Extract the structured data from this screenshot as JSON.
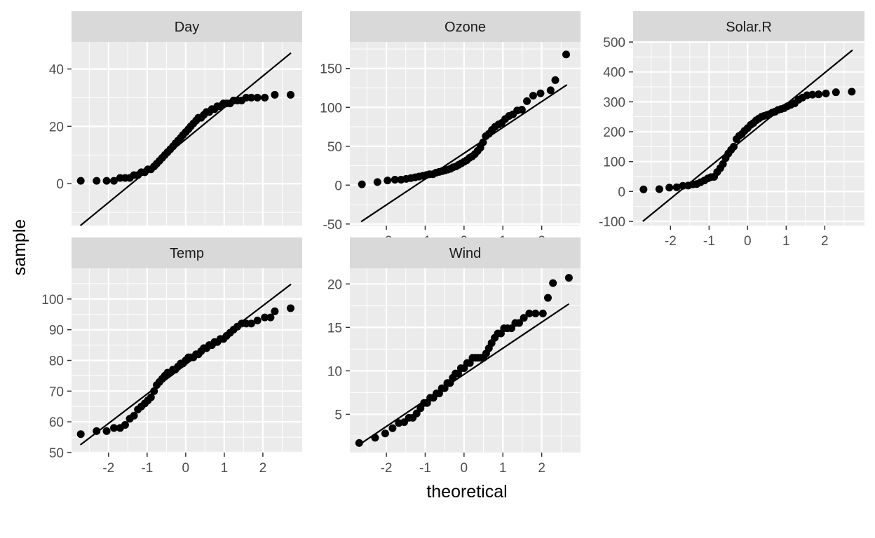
{
  "chart_data": {
    "type": "scatter",
    "subtype": "qq-plot facets",
    "xlabel": "theoretical",
    "ylabel": "sample",
    "x_ticks": [
      "-2",
      "-1",
      "0",
      "1",
      "2"
    ],
    "colors": {
      "panel_bg": "#ebebeb",
      "strip_bg": "#d9d9d9",
      "grid": "#ffffff",
      "points": "#000000",
      "line": "#000000",
      "axis_text": "#4d4d4d",
      "title_text": "#000000"
    },
    "panels": [
      {
        "title": "Day",
        "y_ticks": [
          "0",
          "20",
          "40"
        ],
        "ylim": [
          -14.6,
          49.4
        ],
        "xlim": [
          -2.96,
          3.02
        ],
        "line": {
          "x1": -2.73,
          "y1": -14.6,
          "x2": 2.73,
          "y2": 45.6
        },
        "points": [
          [
            -2.72,
            1
          ],
          [
            -2.31,
            1
          ],
          [
            -2.05,
            1
          ],
          [
            -1.86,
            1
          ],
          [
            -1.7,
            2
          ],
          [
            -1.57,
            2
          ],
          [
            -1.45,
            2
          ],
          [
            -1.34,
            3
          ],
          [
            -1.24,
            3
          ],
          [
            -1.15,
            4
          ],
          [
            -1.06,
            4
          ],
          [
            -0.98,
            5
          ],
          [
            -0.9,
            5
          ],
          [
            -0.82,
            6
          ],
          [
            -0.75,
            7
          ],
          [
            -0.68,
            8
          ],
          [
            -0.61,
            9
          ],
          [
            -0.54,
            10
          ],
          [
            -0.47,
            11
          ],
          [
            -0.4,
            12
          ],
          [
            -0.33,
            13
          ],
          [
            -0.27,
            14
          ],
          [
            -0.2,
            15
          ],
          [
            -0.13,
            16
          ],
          [
            -0.07,
            17
          ],
          [
            0.0,
            18
          ],
          [
            0.07,
            19
          ],
          [
            0.13,
            20
          ],
          [
            0.2,
            21
          ],
          [
            0.27,
            22
          ],
          [
            0.33,
            23
          ],
          [
            0.4,
            23
          ],
          [
            0.47,
            24
          ],
          [
            0.54,
            25
          ],
          [
            0.61,
            25
          ],
          [
            0.68,
            26
          ],
          [
            0.75,
            26
          ],
          [
            0.82,
            27
          ],
          [
            0.9,
            27
          ],
          [
            0.98,
            28
          ],
          [
            1.06,
            28
          ],
          [
            1.15,
            28
          ],
          [
            1.24,
            29
          ],
          [
            1.34,
            29
          ],
          [
            1.45,
            29
          ],
          [
            1.57,
            30
          ],
          [
            1.7,
            30
          ],
          [
            1.86,
            30
          ],
          [
            2.05,
            30
          ],
          [
            2.31,
            31
          ],
          [
            2.72,
            31
          ]
        ]
      },
      {
        "title": "Ozone",
        "y_ticks": [
          "-50",
          "0",
          "50",
          "100",
          "150"
        ],
        "ylim": [
          -52,
          184
        ],
        "xlim": [
          -2.94,
          3.0
        ],
        "line": {
          "x1": -2.65,
          "y1": -47,
          "x2": 2.65,
          "y2": 129
        },
        "points": [
          [
            -2.63,
            1
          ],
          [
            -2.23,
            4
          ],
          [
            -1.97,
            6
          ],
          [
            -1.78,
            7
          ],
          [
            -1.62,
            7
          ],
          [
            -1.49,
            8
          ],
          [
            -1.37,
            9
          ],
          [
            -1.26,
            10
          ],
          [
            -1.16,
            11
          ],
          [
            -1.06,
            12
          ],
          [
            -0.97,
            13
          ],
          [
            -0.89,
            14
          ],
          [
            -0.8,
            14
          ],
          [
            -0.72,
            16
          ],
          [
            -0.64,
            17
          ],
          [
            -0.56,
            18
          ],
          [
            -0.49,
            19
          ],
          [
            -0.42,
            20
          ],
          [
            -0.35,
            21
          ],
          [
            -0.28,
            23
          ],
          [
            -0.21,
            24
          ],
          [
            -0.14,
            26
          ],
          [
            -0.07,
            28
          ],
          [
            0.0,
            30
          ],
          [
            0.07,
            32
          ],
          [
            0.14,
            35
          ],
          [
            0.21,
            37
          ],
          [
            0.28,
            40
          ],
          [
            0.35,
            44
          ],
          [
            0.42,
            48
          ],
          [
            0.49,
            55
          ],
          [
            0.56,
            63
          ],
          [
            0.64,
            66
          ],
          [
            0.72,
            71
          ],
          [
            0.8,
            75
          ],
          [
            0.89,
            78
          ],
          [
            0.97,
            80
          ],
          [
            1.06,
            85
          ],
          [
            1.16,
            89
          ],
          [
            1.26,
            91
          ],
          [
            1.37,
            96
          ],
          [
            1.49,
            97
          ],
          [
            1.62,
            108
          ],
          [
            1.78,
            115
          ],
          [
            1.97,
            118
          ],
          [
            2.23,
            122
          ],
          [
            2.35,
            135
          ],
          [
            2.63,
            168
          ]
        ]
      },
      {
        "title": "Solar.R",
        "y_ticks": [
          "-100",
          "0",
          "100",
          "200",
          "300",
          "400",
          "500"
        ],
        "ylim": [
          -114,
          500
        ],
        "xlim": [
          -2.97,
          3.03
        ],
        "line": {
          "x1": -2.72,
          "y1": -100,
          "x2": 2.72,
          "y2": 473
        },
        "points": [
          [
            -2.7,
            7
          ],
          [
            -2.29,
            8
          ],
          [
            -2.03,
            13
          ],
          [
            -1.84,
            14
          ],
          [
            -1.68,
            19
          ],
          [
            -1.54,
            20
          ],
          [
            -1.42,
            24
          ],
          [
            -1.32,
            25
          ],
          [
            -1.22,
            31
          ],
          [
            -1.12,
            37
          ],
          [
            -1.03,
            44
          ],
          [
            -0.95,
            48
          ],
          [
            -0.87,
            49
          ],
          [
            -0.79,
            65
          ],
          [
            -0.71,
            78
          ],
          [
            -0.64,
            92
          ],
          [
            -0.57,
            112
          ],
          [
            -0.5,
            127
          ],
          [
            -0.43,
            139
          ],
          [
            -0.36,
            150
          ],
          [
            -0.29,
            175
          ],
          [
            -0.22,
            186
          ],
          [
            -0.15,
            192
          ],
          [
            -0.08,
            203
          ],
          [
            0.0,
            212
          ],
          [
            0.08,
            223
          ],
          [
            0.15,
            229
          ],
          [
            0.22,
            238
          ],
          [
            0.29,
            244
          ],
          [
            0.36,
            250
          ],
          [
            0.43,
            253
          ],
          [
            0.5,
            256
          ],
          [
            0.57,
            259
          ],
          [
            0.64,
            264
          ],
          [
            0.71,
            267
          ],
          [
            0.79,
            273
          ],
          [
            0.87,
            276
          ],
          [
            0.95,
            279
          ],
          [
            1.03,
            285
          ],
          [
            1.12,
            290
          ],
          [
            1.22,
            295
          ],
          [
            1.32,
            307
          ],
          [
            1.42,
            314
          ],
          [
            1.54,
            322
          ],
          [
            1.68,
            324
          ],
          [
            1.84,
            325
          ],
          [
            2.03,
            328
          ],
          [
            2.29,
            332
          ],
          [
            2.7,
            334
          ]
        ]
      },
      {
        "title": "Temp",
        "y_ticks": [
          "50",
          "60",
          "70",
          "80",
          "90",
          "100"
        ],
        "ylim": [
          50,
          110
        ],
        "xlim": [
          -2.96,
          3.02
        ],
        "line": {
          "x1": -2.73,
          "y1": 52.5,
          "x2": 2.73,
          "y2": 104.8
        },
        "points": [
          [
            -2.72,
            56
          ],
          [
            -2.31,
            57
          ],
          [
            -2.05,
            57
          ],
          [
            -1.86,
            58
          ],
          [
            -1.7,
            58
          ],
          [
            -1.57,
            59
          ],
          [
            -1.45,
            61
          ],
          [
            -1.34,
            62
          ],
          [
            -1.24,
            64
          ],
          [
            -1.15,
            65
          ],
          [
            -1.06,
            66
          ],
          [
            -0.98,
            67
          ],
          [
            -0.9,
            68
          ],
          [
            -0.82,
            70
          ],
          [
            -0.75,
            72
          ],
          [
            -0.68,
            73
          ],
          [
            -0.61,
            74
          ],
          [
            -0.54,
            75
          ],
          [
            -0.47,
            76
          ],
          [
            -0.4,
            76
          ],
          [
            -0.33,
            77
          ],
          [
            -0.27,
            77
          ],
          [
            -0.2,
            78
          ],
          [
            -0.13,
            79
          ],
          [
            -0.07,
            79
          ],
          [
            0.0,
            80
          ],
          [
            0.07,
            81
          ],
          [
            0.13,
            81
          ],
          [
            0.2,
            81
          ],
          [
            0.27,
            82
          ],
          [
            0.33,
            82
          ],
          [
            0.4,
            83
          ],
          [
            0.47,
            84
          ],
          [
            0.54,
            84
          ],
          [
            0.61,
            85
          ],
          [
            0.68,
            85
          ],
          [
            0.75,
            86
          ],
          [
            0.82,
            86
          ],
          [
            0.9,
            87
          ],
          [
            0.98,
            87
          ],
          [
            1.06,
            88
          ],
          [
            1.15,
            89
          ],
          [
            1.24,
            90
          ],
          [
            1.34,
            91
          ],
          [
            1.45,
            92
          ],
          [
            1.57,
            92
          ],
          [
            1.7,
            92
          ],
          [
            1.86,
            93
          ],
          [
            2.05,
            94
          ],
          [
            2.2,
            94
          ],
          [
            2.31,
            96
          ],
          [
            2.72,
            97
          ]
        ]
      },
      {
        "title": "Wind",
        "y_ticks": [
          "5",
          "10",
          "15",
          "20"
        ],
        "ylim": [
          0.6,
          21.8
        ],
        "xlim": [
          -2.94,
          3.0
        ],
        "line": {
          "x1": -2.7,
          "y1": 1.5,
          "x2": 2.7,
          "y2": 17.7
        },
        "points": [
          [
            -2.7,
            1.7
          ],
          [
            -2.29,
            2.3
          ],
          [
            -2.03,
            2.8
          ],
          [
            -1.84,
            3.4
          ],
          [
            -1.68,
            4.0
          ],
          [
            -1.54,
            4.1
          ],
          [
            -1.42,
            4.6
          ],
          [
            -1.32,
            4.6
          ],
          [
            -1.22,
            5.1
          ],
          [
            -1.12,
            5.7
          ],
          [
            -1.03,
            6.3
          ],
          [
            -0.95,
            6.3
          ],
          [
            -0.87,
            6.9
          ],
          [
            -0.79,
            6.9
          ],
          [
            -0.71,
            7.4
          ],
          [
            -0.64,
            7.4
          ],
          [
            -0.57,
            8.0
          ],
          [
            -0.5,
            8.0
          ],
          [
            -0.43,
            8.6
          ],
          [
            -0.36,
            8.6
          ],
          [
            -0.29,
            9.2
          ],
          [
            -0.22,
            9.7
          ],
          [
            -0.15,
            9.7
          ],
          [
            -0.08,
            10.3
          ],
          [
            0.0,
            10.3
          ],
          [
            0.08,
            10.9
          ],
          [
            0.15,
            10.9
          ],
          [
            0.22,
            11.5
          ],
          [
            0.29,
            11.5
          ],
          [
            0.36,
            11.5
          ],
          [
            0.43,
            11.5
          ],
          [
            0.5,
            11.5
          ],
          [
            0.57,
            12.0
          ],
          [
            0.64,
            12.6
          ],
          [
            0.71,
            13.2
          ],
          [
            0.79,
            13.8
          ],
          [
            0.87,
            14.3
          ],
          [
            0.95,
            14.3
          ],
          [
            1.03,
            14.9
          ],
          [
            1.12,
            14.9
          ],
          [
            1.22,
            14.9
          ],
          [
            1.32,
            15.5
          ],
          [
            1.42,
            15.5
          ],
          [
            1.54,
            16.1
          ],
          [
            1.68,
            16.6
          ],
          [
            1.84,
            16.6
          ],
          [
            2.03,
            16.6
          ],
          [
            2.16,
            18.4
          ],
          [
            2.29,
            20.1
          ],
          [
            2.7,
            20.7
          ]
        ]
      }
    ]
  }
}
